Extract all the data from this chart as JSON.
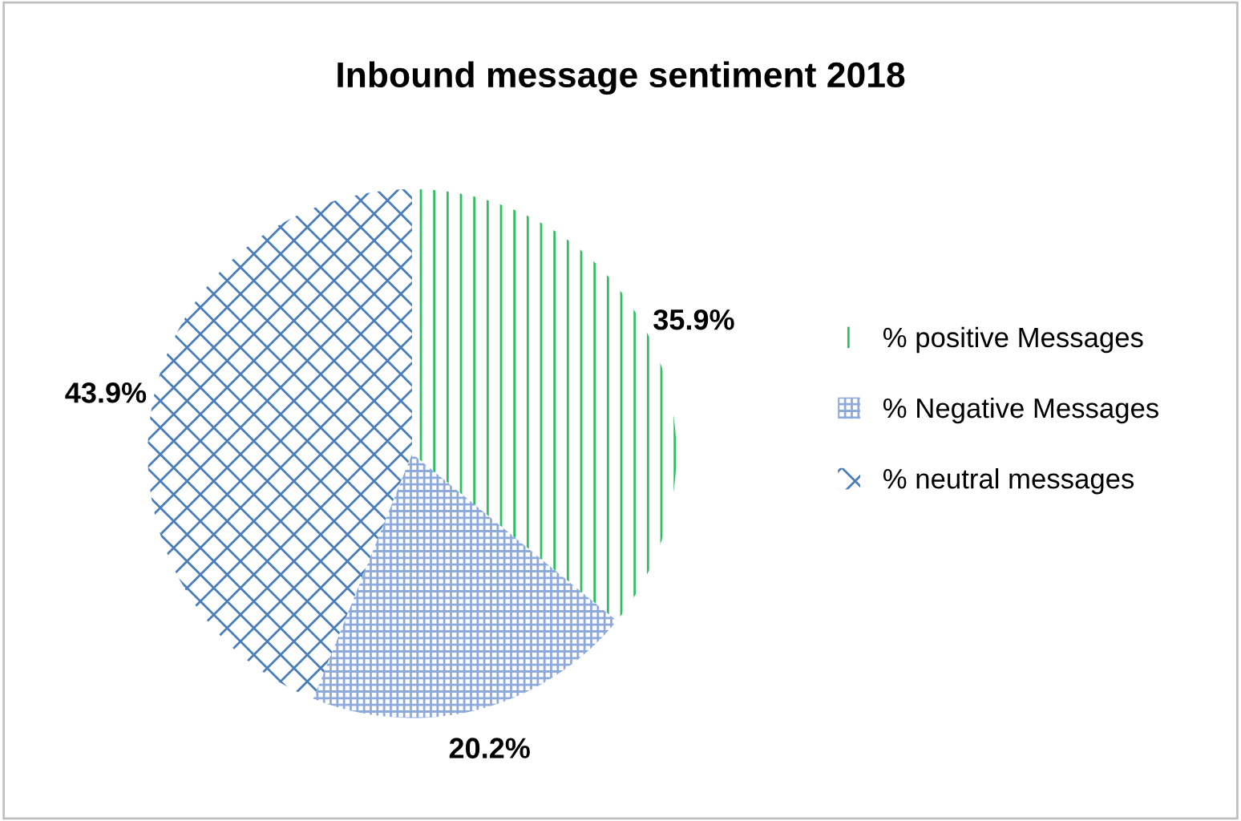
{
  "chart_data": {
    "type": "pie",
    "title": "Inbound message sentiment 2018",
    "categories": [
      "% positive Messages",
      "% Negative Messages",
      "% neutral messages"
    ],
    "values": [
      35.9,
      20.2,
      43.9
    ],
    "colors": [
      "#2fbf5f",
      "#8eaadb",
      "#4a7ebb"
    ],
    "value_labels": [
      "35.9%",
      "20.2%",
      "43.9%"
    ],
    "legend": "right"
  }
}
